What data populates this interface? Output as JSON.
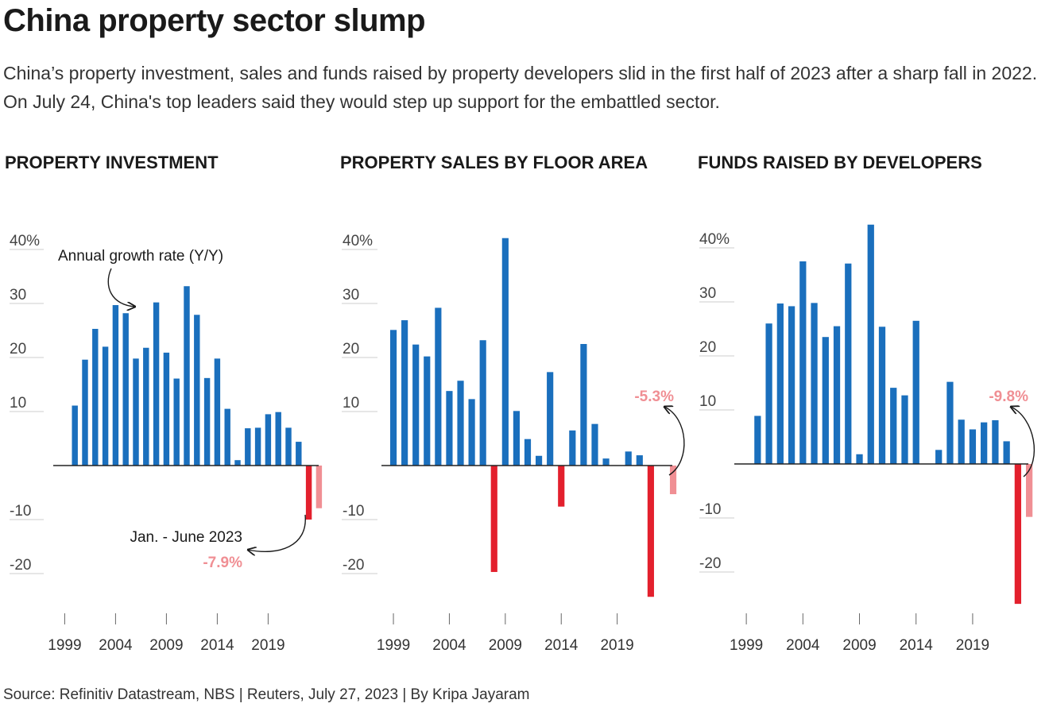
{
  "headline": "China property sector slump",
  "subhead": "China’s property investment, sales and funds raised by property developers slid in the first half of 2023 after a sharp fall in 2022.  On July 24, China's top leaders said they would step up support for the embattled sector.",
  "source": "Source: Refinitiv Datastream, NBS | Reuters, July 27, 2023 | By Kripa Jayaram",
  "colors": {
    "positive": "#1a6fbd",
    "negative": "#e3202d",
    "partial": "#f08f94",
    "axis": "#222222",
    "grid": "#cccccc"
  },
  "annotations": {
    "growth_rate": "Annual growth rate (Y/Y)",
    "period": "Jan. - June 2023"
  },
  "chart_data": [
    {
      "type": "bar",
      "title": "PROPERTY INVESTMENT",
      "x": [
        1999,
        2000,
        2001,
        2002,
        2003,
        2004,
        2005,
        2006,
        2007,
        2008,
        2009,
        2010,
        2011,
        2012,
        2013,
        2014,
        2015,
        2016,
        2017,
        2018,
        2019,
        2020,
        2021,
        2022,
        2023
      ],
      "values": [
        null,
        11.1,
        19.6,
        25.3,
        22.0,
        29.7,
        28.2,
        19.8,
        21.8,
        30.2,
        20.9,
        16.1,
        33.2,
        27.9,
        16.2,
        19.8,
        10.5,
        1.0,
        6.9,
        7.0,
        9.5,
        9.9,
        7.0,
        4.4,
        -10.0
      ],
      "ytd": {
        "label": "Jan. - June 2023",
        "value": -7.9,
        "display": "-7.9%"
      },
      "ylim": [
        -25,
        45
      ],
      "yticks": [
        "40%",
        "30",
        "20",
        "10",
        "-10",
        "-20"
      ],
      "xticks": [
        "1999",
        "2004",
        "2009",
        "2014",
        "2019"
      ]
    },
    {
      "type": "bar",
      "title": "PROPERTY SALES BY FLOOR AREA",
      "x": [
        1999,
        2000,
        2001,
        2002,
        2003,
        2004,
        2005,
        2006,
        2007,
        2008,
        2009,
        2010,
        2011,
        2012,
        2013,
        2014,
        2015,
        2016,
        2017,
        2018,
        2019,
        2020,
        2021,
        2022,
        2023
      ],
      "values": [
        25.1,
        26.9,
        22.4,
        20.2,
        29.2,
        13.8,
        15.7,
        12.3,
        23.2,
        -19.7,
        42.1,
        10.1,
        4.9,
        1.8,
        17.3,
        -7.6,
        6.5,
        22.5,
        7.7,
        1.3,
        null,
        2.6,
        1.9,
        -24.3,
        null
      ],
      "ytd": {
        "value": -5.3,
        "display": "-5.3%"
      },
      "ylim": [
        -25,
        45
      ],
      "yticks": [
        "40%",
        "30",
        "20",
        "10",
        "-10",
        "-20"
      ],
      "xticks": [
        "1999",
        "2004",
        "2009",
        "2014",
        "2019"
      ]
    },
    {
      "type": "bar",
      "title": "FUNDS RAISED BY DEVELOPERS",
      "x": [
        1999,
        2000,
        2001,
        2002,
        2003,
        2004,
        2005,
        2006,
        2007,
        2008,
        2009,
        2010,
        2011,
        2012,
        2013,
        2014,
        2015,
        2016,
        2017,
        2018,
        2019,
        2020,
        2021,
        2022,
        2023
      ],
      "values": [
        null,
        8.9,
        26.0,
        29.7,
        29.2,
        37.5,
        29.8,
        23.5,
        25.5,
        37.1,
        1.8,
        44.3,
        25.4,
        14.1,
        12.7,
        26.5,
        null,
        2.6,
        15.2,
        8.2,
        6.4,
        7.7,
        8.1,
        4.2,
        -25.9
      ],
      "ytd": {
        "value": -9.8,
        "display": "-9.8%"
      },
      "ylim": [
        -28,
        45
      ],
      "yticks": [
        "40%",
        "30",
        "20",
        "10",
        "-10",
        "-20"
      ],
      "xticks": [
        "1999",
        "2004",
        "2009",
        "2014",
        "2019"
      ]
    }
  ]
}
